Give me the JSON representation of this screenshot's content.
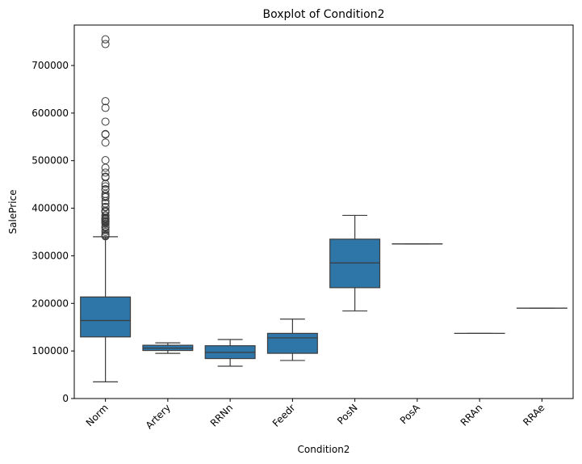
{
  "chart_data": {
    "type": "box",
    "title": "Boxplot of Condition2",
    "xlabel": "Condition2",
    "ylabel": "SalePrice",
    "ylim": [
      0,
      785000
    ],
    "yticks": [
      0,
      100000,
      200000,
      300000,
      400000,
      500000,
      600000,
      700000
    ],
    "ytick_labels": [
      "0",
      "100000",
      "200000",
      "300000",
      "400000",
      "500000",
      "600000",
      "700000"
    ],
    "grid": false,
    "box_color": "#2e76a8",
    "line_color": "#3c3c3c",
    "categories": [
      "Norm",
      "Artery",
      "RRNn",
      "Feedr",
      "PosN",
      "PosA",
      "RRAn",
      "RRAe"
    ],
    "boxes": [
      {
        "category": "Norm",
        "whisker_low": 35000,
        "q1": 129500,
        "median": 164000,
        "q3": 213500,
        "whisker_high": 340000,
        "outliers": [
          755000,
          745000,
          625000,
          611000,
          582000,
          556000,
          555000,
          538000,
          501000,
          485000,
          475000,
          466500,
          465000,
          451000,
          446000,
          440000,
          438780,
          430000,
          426000,
          423000,
          415298,
          410000,
          402861,
          402000,
          395192,
          394617,
          392500,
          392000,
          385000,
          384500,
          380000,
          378500,
          377500,
          377426,
          375000,
          372500,
          372402,
          370878,
          369900,
          367294,
          361919,
          360000,
          359100,
          354000,
          350000,
          345000,
          342643,
          341000
        ]
      },
      {
        "category": "Artery",
        "whisker_low": 95000,
        "q1": 101000,
        "median": 106000,
        "q3": 112000,
        "whisker_high": 117000,
        "outliers": []
      },
      {
        "category": "RRNn",
        "whisker_low": 68000,
        "q1": 84000,
        "median": 97000,
        "q3": 111000,
        "whisker_high": 124000,
        "outliers": []
      },
      {
        "category": "Feedr",
        "whisker_low": 80000,
        "q1": 95000,
        "median": 127500,
        "q3": 137000,
        "whisker_high": 167000,
        "outliers": []
      },
      {
        "category": "PosN",
        "whisker_low": 184000,
        "q1": 233000,
        "median": 285000,
        "q3": 335000,
        "whisker_high": 385000,
        "outliers": []
      },
      {
        "category": "PosA",
        "whisker_low": 325000,
        "q1": 325000,
        "median": 325000,
        "q3": 325000,
        "whisker_high": 325000,
        "outliers": []
      },
      {
        "category": "RRAn",
        "whisker_low": 136905,
        "q1": 136905,
        "median": 136905,
        "q3": 136905,
        "whisker_high": 136905,
        "outliers": []
      },
      {
        "category": "RRAe",
        "whisker_low": 190000,
        "q1": 190000,
        "median": 190000,
        "q3": 190000,
        "whisker_high": 190000,
        "outliers": []
      }
    ]
  }
}
